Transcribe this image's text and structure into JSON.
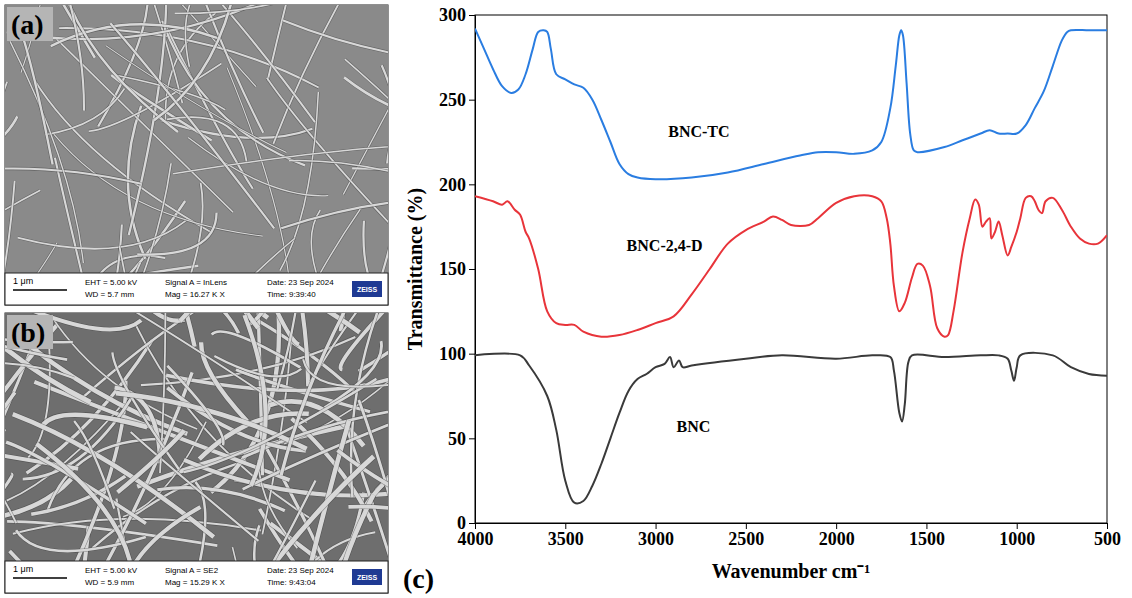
{
  "sem_images": [
    {
      "letter": "(a)",
      "scale_bar": "1 μm",
      "info": [
        [
          "EHT = 5.00 kV",
          "WD = 5.7 mm"
        ],
        [
          "Signal A = InLens",
          "Mag = 16.27 K X"
        ],
        [
          "Date: 23 Sep 2024",
          "Time: 9:39:40"
        ]
      ],
      "logo": "ZEISS"
    },
    {
      "letter": "(b)",
      "scale_bar": "1 μm",
      "info": [
        [
          "EHT = 5.00 kV",
          "WD = 5.9 mm"
        ],
        [
          "Signal A = SE2",
          "Mag = 15.29 K X"
        ],
        [
          "Date: 23 Sep 2024",
          "Time: 9:43:04"
        ]
      ],
      "logo": "ZEISS"
    }
  ],
  "chart_letter": "(c)",
  "chart_data": {
    "type": "line",
    "x_label": "Wavenumber cm⁻¹",
    "y_label": "Transmittance (%)",
    "xlim": [
      4000,
      500
    ],
    "xticks": [
      4000,
      3500,
      3000,
      2500,
      2000,
      1500,
      1000,
      500
    ],
    "ylim": [
      0,
      300
    ],
    "yticks": [
      0,
      50,
      100,
      150,
      200,
      250,
      300
    ],
    "series": [
      {
        "color": "#3a3a3a",
        "x": [
          4000,
          3750,
          3700,
          3600,
          3550,
          3500,
          3450,
          3400,
          3350,
          3300,
          3250,
          3200,
          3150,
          3100,
          3050,
          3000,
          2950,
          2920,
          2900,
          2870,
          2850,
          2800,
          2500,
          2300,
          2000,
          1800,
          1700,
          1680,
          1650,
          1635,
          1620,
          1600,
          1580,
          1400,
          1200,
          1100,
          1050,
          1030,
          1015,
          1000,
          980,
          800,
          700,
          600,
          500
        ],
        "values": [
          99,
          99,
          93,
          75,
          55,
          25,
          12,
          13,
          22,
          35,
          50,
          65,
          78,
          85,
          88,
          92,
          94,
          98,
          92,
          96,
          92,
          93,
          97,
          99,
          97,
          99,
          98,
          90,
          65,
          60,
          70,
          95,
          99,
          98,
          99,
          99,
          97,
          90,
          84,
          92,
          99,
          99,
          92,
          88,
          87
        ]
      },
      {
        "color": "#e8343a",
        "x": [
          4000,
          3900,
          3850,
          3820,
          3780,
          3750,
          3720,
          3700,
          3650,
          3600,
          3550,
          3500,
          3450,
          3400,
          3300,
          3200,
          3100,
          3000,
          2900,
          2800,
          2700,
          2600,
          2500,
          2400,
          2350,
          2300,
          2250,
          2150,
          2100,
          2000,
          1900,
          1800,
          1750,
          1720,
          1700,
          1680,
          1650,
          1620,
          1580,
          1550,
          1520,
          1480,
          1440,
          1400,
          1380,
          1350,
          1300,
          1260,
          1230,
          1210,
          1190,
          1170,
          1150,
          1140,
          1120,
          1100,
          1080,
          1050,
          1030,
          1000,
          980,
          950,
          920,
          900,
          880,
          860,
          840,
          800,
          750,
          700,
          650,
          600,
          550,
          500
        ],
        "values": [
          193,
          190,
          188,
          190,
          185,
          182,
          172,
          168,
          150,
          125,
          118,
          117,
          117,
          113,
          110,
          111,
          114,
          118,
          122,
          135,
          150,
          165,
          173,
          178,
          181,
          179,
          176,
          176,
          180,
          189,
          193,
          193,
          190,
          180,
          165,
          140,
          125,
          130,
          145,
          153,
          152,
          140,
          115,
          110,
          111,
          125,
          160,
          180,
          191,
          188,
          175,
          178,
          180,
          168,
          172,
          178,
          170,
          158,
          163,
          172,
          180,
          192,
          193,
          190,
          185,
          183,
          190,
          192,
          185,
          175,
          168,
          165,
          165,
          170
        ]
      },
      {
        "color": "#2a7de1",
        "x": [
          4000,
          3950,
          3900,
          3850,
          3800,
          3760,
          3720,
          3680,
          3650,
          3620,
          3600,
          3580,
          3550,
          3500,
          3450,
          3400,
          3350,
          3300,
          3250,
          3200,
          3150,
          3100,
          3000,
          2800,
          2600,
          2400,
          2200,
          2100,
          2000,
          1900,
          1800,
          1750,
          1700,
          1670,
          1650,
          1640,
          1630,
          1610,
          1590,
          1570,
          1550,
          1400,
          1300,
          1200,
          1150,
          1100,
          1050,
          1000,
          950,
          900,
          850,
          800,
          750,
          720,
          700,
          600,
          500
        ],
        "values": [
          292,
          280,
          268,
          258,
          254,
          256,
          265,
          280,
          290,
          291,
          290,
          280,
          265,
          262,
          259,
          257,
          250,
          238,
          225,
          212,
          206,
          204,
          203,
          204,
          207,
          212,
          217,
          219,
          219,
          218,
          220,
          225,
          245,
          270,
          288,
          291,
          288,
          260,
          230,
          220,
          219,
          222,
          226,
          230,
          232,
          230,
          230,
          230,
          235,
          245,
          255,
          270,
          285,
          290,
          291,
          291,
          291
        ]
      }
    ],
    "annotations": [
      {
        "text": "BNC-TC",
        "x": 2760,
        "y": 230
      },
      {
        "text": "BNC-2,4-D",
        "x": 2950,
        "y": 163
      },
      {
        "text": "BNC",
        "x": 2790,
        "y": 56
      }
    ]
  }
}
